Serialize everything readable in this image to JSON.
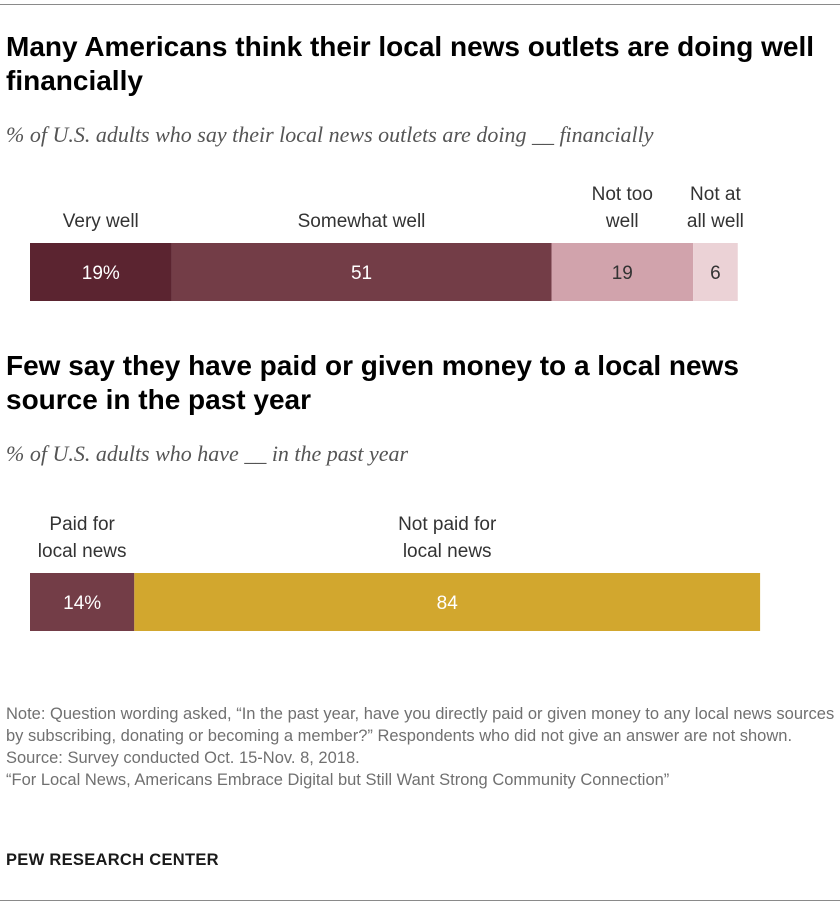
{
  "chart_data": [
    {
      "type": "bar",
      "orientation": "horizontal-stacked",
      "title": "Many Americans think their local news outlets are doing well financially",
      "subtitle": "% of U.S. adults who say their local news outlets are doing __ financially",
      "categories": [
        {
          "label": [
            "Very well"
          ],
          "value": 19,
          "display": "19%",
          "color": "#5b2430",
          "text_color": "#ffffff"
        },
        {
          "label": [
            "Somewhat well"
          ],
          "value": 51,
          "display": "51",
          "color": "#733d47",
          "text_color": "#ffffff"
        },
        {
          "label": [
            "Not too",
            "well"
          ],
          "value": 19,
          "display": "19",
          "color": "#d1a3ac",
          "text_color": "#333333"
        },
        {
          "label": [
            "Not at",
            "all well"
          ],
          "value": 6,
          "display": "6",
          "color": "#ebd2d6",
          "text_color": "#333333"
        }
      ],
      "total": 100
    },
    {
      "type": "bar",
      "orientation": "horizontal-stacked",
      "title": "Few say they have paid or given money to a local news source in the past year",
      "subtitle": "% of U.S. adults who have __ in the past year",
      "categories": [
        {
          "label": [
            "Paid for",
            "local news"
          ],
          "value": 14,
          "display": "14%",
          "color": "#733d47",
          "text_color": "#ffffff"
        },
        {
          "label": [
            "Not paid for",
            "local news"
          ],
          "value": 84,
          "display": "84",
          "color": "#d2a72e",
          "text_color": "#ffffff"
        }
      ],
      "total": 100
    }
  ],
  "notes": {
    "note": "Note: Question wording asked, “In the past year, have you directly paid or given money to any local news sources by subscribing, donating or becoming a member?” Respondents who did not give an answer are not shown.",
    "source": "Source: Survey conducted Oct. 15-Nov. 8, 2018.",
    "report": "“For Local News, Americans Embrace Digital but Still Want Strong Community Connection”"
  },
  "brand": "PEW RESEARCH CENTER"
}
